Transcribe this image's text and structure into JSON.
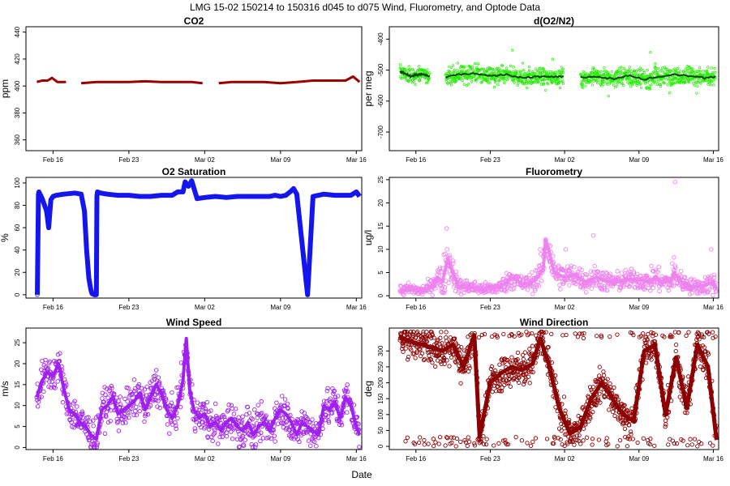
{
  "page": {
    "title": "LMG   15-02    150214 to 150316    d045 to d075   Wind, Fluorometry, and Optode Data",
    "xlabel": "Date"
  },
  "chart_data": [
    {
      "type": "line",
      "title": "CO2",
      "ylabel": "ppm",
      "xlim": [
        44.5,
        75.5
      ],
      "ylim": [
        352,
        444
      ],
      "yticks": [
        360,
        380,
        400,
        420,
        440
      ],
      "xticks": [
        47,
        54,
        61,
        68,
        75
      ],
      "xtick_labels": [
        "Feb 16",
        "Feb 23",
        "Mar 02",
        "Mar 09",
        "Mar 16"
      ],
      "style": "line",
      "color": "#9a0000",
      "series": [
        {
          "x": [
            45.5,
            46.0,
            46.5,
            46.9,
            47.4,
            47.8,
            48.2
          ],
          "y": [
            403,
            404,
            404,
            406,
            403,
            403,
            403
          ]
        },
        {
          "x": [
            49.6,
            51,
            52.5,
            54,
            55.5,
            57,
            58.5,
            59.8,
            60.8
          ],
          "y": [
            402,
            403,
            403,
            403,
            403.5,
            403,
            403,
            403,
            402
          ]
        },
        {
          "x": [
            62.3,
            63.5,
            65,
            66.5,
            68,
            69.5,
            71,
            72.5,
            74,
            74.7,
            75.3
          ],
          "y": [
            402,
            403,
            403,
            403,
            402,
            403,
            404,
            404,
            404,
            407,
            403
          ]
        }
      ]
    },
    {
      "type": "scatter",
      "title": "d(O2/N2)",
      "ylabel": "per meg",
      "xlim": [
        44.5,
        75.5
      ],
      "ylim": [
        -760,
        -360
      ],
      "yticks": [
        -700,
        -600,
        -500,
        -400
      ],
      "xticks": [
        47,
        54,
        61,
        68,
        75
      ],
      "xtick_labels": [
        "Feb 16",
        "Feb 23",
        "Mar 02",
        "Mar 09",
        "Mar 16"
      ],
      "style": "scatter",
      "color": "#22ee00",
      "trend_color": "#004400",
      "series": [
        {
          "x": [
            45.5,
            46.5,
            47.5,
            48.3
          ],
          "y": [
            -505,
            -520,
            -512,
            -520
          ],
          "spread": 40
        },
        {
          "x": [
            49.8,
            51,
            52.5,
            54,
            55.5,
            57,
            58.5,
            60.0,
            60.9
          ],
          "y": [
            -522,
            -515,
            -510,
            -520,
            -515,
            -525,
            -520,
            -522,
            -520
          ],
          "spread": 45
        },
        {
          "x": [
            62.5,
            64,
            65.5,
            67,
            68.5,
            70,
            71.5,
            73,
            74.5,
            75.2
          ],
          "y": [
            -525,
            -520,
            -528,
            -518,
            -530,
            -522,
            -515,
            -520,
            -525,
            -522
          ],
          "spread": 48
        }
      ]
    },
    {
      "type": "scatter",
      "title": "O2 Saturation",
      "ylabel": "%",
      "xlim": [
        44.5,
        75.5
      ],
      "ylim": [
        -3,
        105
      ],
      "yticks": [
        0,
        20,
        40,
        60,
        80,
        100
      ],
      "xticks": [
        47,
        54,
        61,
        68,
        75
      ],
      "xtick_labels": [
        "Feb 16",
        "Feb 23",
        "Mar 02",
        "Mar 09",
        "Mar 16"
      ],
      "style": "thick",
      "color": "#1515ee",
      "series": [
        {
          "x": [
            45.55,
            45.65,
            45.7,
            46.0,
            46.4,
            46.6,
            46.8,
            47.0,
            47.3,
            48,
            49,
            49.6,
            49.9,
            50.1,
            50.3,
            50.5,
            50.6,
            50.8,
            51.0,
            51.05,
            51.1,
            51.4,
            52,
            53,
            54,
            55,
            56,
            57,
            58,
            58.5,
            59.0,
            59.2,
            59.5,
            59.8,
            60.3,
            61,
            62,
            63,
            64,
            65,
            66,
            66.5,
            67.0,
            67.5,
            68,
            68.5,
            69.0,
            69.2,
            69.5,
            70.5,
            71,
            72,
            73,
            74,
            74.5,
            75,
            75.3
          ],
          "y": [
            0,
            90,
            92,
            86,
            75,
            60,
            85,
            88,
            89,
            90,
            91,
            90,
            75,
            40,
            15,
            4,
            1,
            0,
            0,
            88,
            92,
            91,
            90,
            89,
            89,
            88,
            88,
            89,
            89,
            92,
            92,
            101,
            97,
            102,
            86,
            87,
            88,
            87,
            88,
            88,
            88,
            88,
            88,
            89,
            88,
            89,
            93,
            95,
            90,
            0,
            88,
            90,
            89,
            89,
            89,
            92,
            88
          ]
        }
      ]
    },
    {
      "type": "scatter",
      "title": "Fluorometry",
      "ylabel": "ug/l",
      "xlim": [
        44.5,
        75.5
      ],
      "ylim": [
        -0.5,
        25.5
      ],
      "yticks": [
        0,
        5,
        10,
        15,
        20,
        25
      ],
      "xticks": [
        47,
        54,
        61,
        68,
        75
      ],
      "xtick_labels": [
        "Feb 16",
        "Feb 23",
        "Mar 02",
        "Mar 09",
        "Mar 16"
      ],
      "style": "spiky",
      "color": "#ee82ee",
      "series": [
        {
          "x": [
            45.5,
            46.5,
            47.5,
            48.5,
            49.0,
            49.5,
            50.0,
            51,
            52,
            53,
            54,
            55,
            55.6,
            56,
            57,
            58,
            58.5,
            59.0,
            59.2,
            59.5,
            60,
            61,
            62,
            63,
            64,
            65,
            66,
            67,
            68,
            69,
            69.6,
            70,
            71,
            71.3,
            72,
            73,
            74,
            75,
            75.3
          ],
          "y": [
            1,
            1.5,
            1,
            2,
            4,
            3,
            8,
            2,
            2,
            1.5,
            1.5,
            2,
            3,
            4,
            2.5,
            3,
            4,
            6,
            12,
            10,
            5,
            4,
            4.5,
            3,
            4,
            3,
            3,
            3.5,
            3.5,
            3,
            4,
            3,
            3,
            5,
            3,
            2,
            2,
            3,
            1.5
          ],
          "spread": [
            1.2,
            1.2,
            1,
            1.5,
            2,
            4,
            5,
            1.5,
            1.5,
            1.2,
            1.2,
            1.4,
            2,
            2.5,
            1.5,
            2,
            2.5,
            3,
            5,
            4,
            3,
            2.5,
            2.5,
            2,
            2.5,
            2,
            2,
            2,
            2,
            2,
            3,
            2,
            2,
            4,
            2,
            1.5,
            1.5,
            3,
            1.2
          ]
        }
      ],
      "outliers": {
        "x": [
          49.9,
          58.7,
          61.1,
          63.7,
          71.4,
          74.8
        ],
        "y": [
          14.5,
          10,
          10,
          13,
          24.5,
          10
        ]
      }
    },
    {
      "type": "scatter",
      "title": "Wind Speed",
      "ylabel": "m/s",
      "xlim": [
        44.5,
        75.5
      ],
      "ylim": [
        -0.5,
        28.5
      ],
      "yticks": [
        0,
        5,
        10,
        15,
        20,
        25
      ],
      "xticks": [
        47,
        54,
        61,
        68,
        75
      ],
      "xtick_labels": [
        "Feb 16",
        "Feb 23",
        "Mar 02",
        "Mar 09",
        "Mar 16"
      ],
      "style": "spiky",
      "color": "#a020f0",
      "series": [
        {
          "x": [
            45.5,
            46,
            46.5,
            47,
            47.5,
            48,
            48.5,
            49,
            49.5,
            50,
            50.5,
            51,
            51.5,
            52,
            52.5,
            53,
            53.5,
            54,
            54.5,
            55,
            55.5,
            56,
            56.5,
            57,
            57.5,
            58,
            58.5,
            59,
            59.3,
            59.6,
            60,
            60.5,
            61,
            61.5,
            62,
            62.5,
            63,
            63.5,
            64,
            64.5,
            65,
            65.5,
            66,
            66.5,
            67,
            67.5,
            68,
            68.5,
            69,
            69.5,
            70,
            70.5,
            71,
            71.5,
            72,
            72.5,
            73,
            73.5,
            74,
            74.5,
            75,
            75.3
          ],
          "y": [
            12,
            16,
            18,
            17,
            20,
            14,
            9,
            8,
            6,
            5,
            3,
            2,
            9,
            10,
            12,
            8,
            9,
            10,
            11,
            13,
            9,
            12,
            15,
            13,
            9,
            7,
            10,
            16,
            26,
            14,
            9,
            7,
            8,
            5,
            6,
            4,
            6,
            7,
            5,
            4,
            6,
            3,
            5,
            6,
            4,
            7,
            9,
            8,
            6,
            3,
            6,
            5,
            4,
            3,
            10,
            9,
            11,
            7,
            12,
            10,
            5,
            3
          ],
          "spread": 4
        }
      ]
    },
    {
      "type": "scatter",
      "title": "Wind Direction",
      "ylabel": "deg",
      "xlim": [
        44.5,
        75.5
      ],
      "ylim": [
        -10,
        372
      ],
      "yticks": [
        0,
        50,
        100,
        150,
        200,
        250,
        300
      ],
      "xticks": [
        47,
        54,
        61,
        68,
        75
      ],
      "xtick_labels": [
        "Feb 16",
        "Feb 23",
        "Mar 02",
        "Mar 09",
        "Mar 16"
      ],
      "style": "wind",
      "color": "#8b0000",
      "series": [
        {
          "x": [
            45.5,
            46.5,
            47.5,
            48.5,
            49.5,
            50.5,
            51.5,
            52.5,
            53.0,
            54,
            55,
            56,
            57,
            58,
            58.7,
            59.5,
            60.5,
            61.5,
            62.5,
            63.5,
            64.5,
            65.5,
            66.5,
            67.5,
            68.5,
            69.5,
            70.5,
            71.5,
            72.5,
            73.5,
            74.5,
            75.3
          ],
          "y": [
            345,
            330,
            320,
            310,
            300,
            320,
            250,
            350,
            30,
            200,
            230,
            250,
            240,
            260,
            340,
            260,
            120,
            40,
            60,
            150,
            200,
            150,
            100,
            80,
            300,
            320,
            100,
            280,
            120,
            320,
            250,
            20
          ],
          "spread": 55
        }
      ]
    }
  ]
}
